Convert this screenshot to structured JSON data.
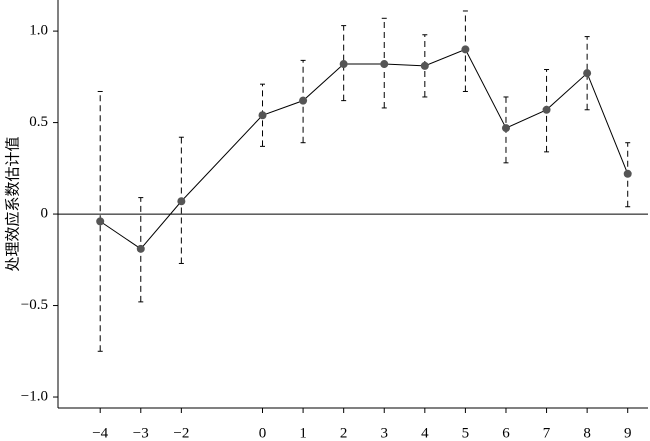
{
  "chart_data": {
    "type": "line",
    "y_label": "处理效应系数估计值",
    "x": [
      -4,
      -3,
      -2,
      0,
      1,
      2,
      3,
      4,
      5,
      6,
      7,
      8,
      9
    ],
    "series": [
      {
        "color": "#555555",
        "values": [
          -0.04,
          -0.19,
          0.07,
          0.54,
          0.62,
          0.82,
          0.82,
          0.81,
          0.9,
          0.47,
          0.57,
          0.77,
          0.22
        ],
        "ci_low": [
          -0.75,
          -0.48,
          -0.27,
          0.37,
          0.39,
          0.62,
          0.58,
          0.64,
          0.67,
          0.28,
          0.34,
          0.57,
          0.04
        ],
        "ci_high": [
          0.67,
          0.09,
          0.42,
          0.71,
          0.84,
          1.03,
          1.07,
          0.98,
          1.11,
          0.64,
          0.79,
          0.97,
          0.39
        ]
      }
    ],
    "reference_line": 0,
    "xlim": [
      -5.04,
      9.5
    ],
    "ylim": [
      -1.06,
      1.17
    ],
    "xticks": [
      {
        "value": -4,
        "label": "−4"
      },
      {
        "value": -3,
        "label": "−3"
      },
      {
        "value": -2,
        "label": "−2"
      },
      0,
      1,
      2,
      3,
      4,
      5,
      6,
      7,
      8,
      9
    ],
    "yticks": [
      {
        "value": -1,
        "label": "−1.0"
      },
      {
        "value": -0.5,
        "label": "−0.5"
      },
      0,
      0.5,
      {
        "value": 1,
        "label": "1.0"
      }
    ],
    "grid": false
  }
}
